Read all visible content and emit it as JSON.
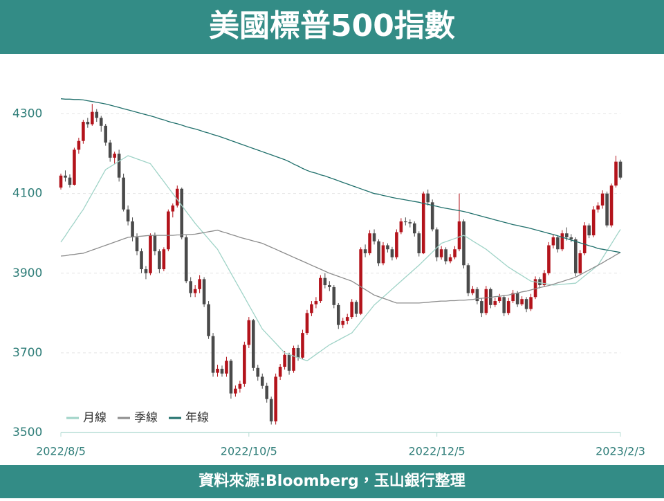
{
  "chart_data": {
    "type": "candlestick",
    "title": "美國標普500指數",
    "source": "資料來源:Bloomberg，玉山銀行整理",
    "categories": [
      "2022/8/5",
      null,
      null,
      null,
      null,
      null,
      null,
      null,
      null,
      null,
      null,
      null,
      null,
      null,
      null,
      null,
      null,
      null,
      null,
      null,
      null,
      null,
      null,
      null,
      null,
      null,
      null,
      null,
      null,
      null,
      null,
      null,
      null,
      null,
      null,
      null,
      null,
      null,
      null,
      null,
      null,
      null,
      "2022/10/5",
      null,
      null,
      null,
      null,
      null,
      null,
      null,
      null,
      null,
      null,
      null,
      null,
      null,
      null,
      null,
      null,
      null,
      null,
      null,
      null,
      null,
      null,
      null,
      null,
      null,
      null,
      null,
      null,
      null,
      null,
      null,
      null,
      null,
      null,
      null,
      null,
      null,
      null,
      null,
      null,
      null,
      "2022/12/5",
      null,
      null,
      null,
      null,
      null,
      null,
      null,
      null,
      null,
      null,
      null,
      null,
      null,
      null,
      null,
      null,
      null,
      null,
      null,
      null,
      null,
      null,
      null,
      null,
      null,
      null,
      null,
      null,
      null,
      null,
      null,
      null,
      null,
      null,
      null,
      null,
      null,
      null,
      null,
      null,
      "2023/2/3"
    ],
    "ohlc": [
      [
        4115,
        4150,
        4110,
        4145
      ],
      [
        4145,
        4158,
        4130,
        4140
      ],
      [
        4140,
        4148,
        4115,
        4122
      ],
      [
        4122,
        4215,
        4120,
        4210
      ],
      [
        4210,
        4240,
        4200,
        4232
      ],
      [
        4232,
        4285,
        4225,
        4280
      ],
      [
        4280,
        4290,
        4265,
        4274
      ],
      [
        4274,
        4325,
        4270,
        4305
      ],
      [
        4305,
        4312,
        4280,
        4290
      ],
      [
        4290,
        4295,
        4255,
        4270
      ],
      [
        4270,
        4275,
        4220,
        4228
      ],
      [
        4228,
        4235,
        4180,
        4190
      ],
      [
        4190,
        4205,
        4175,
        4200
      ],
      [
        4200,
        4210,
        4130,
        4140
      ],
      [
        4140,
        4150,
        4055,
        4060
      ],
      [
        4060,
        4070,
        4020,
        4030
      ],
      [
        4030,
        4040,
        3980,
        3990
      ],
      [
        3990,
        4000,
        3945,
        3955
      ],
      [
        3955,
        3962,
        3900,
        3910
      ],
      [
        3910,
        3918,
        3885,
        3900
      ],
      [
        3900,
        4000,
        3895,
        3995
      ],
      [
        3995,
        4002,
        3945,
        3955
      ],
      [
        3955,
        3960,
        3900,
        3910
      ],
      [
        3910,
        3965,
        3905,
        3960
      ],
      [
        3960,
        4060,
        3955,
        4055
      ],
      [
        4055,
        4075,
        4040,
        4070
      ],
      [
        4070,
        4120,
        4065,
        4112
      ],
      [
        4112,
        4115,
        3985,
        3990
      ],
      [
        3990,
        3995,
        3875,
        3880
      ],
      [
        3880,
        3890,
        3840,
        3850
      ],
      [
        3850,
        3870,
        3840,
        3860
      ],
      [
        3860,
        3895,
        3850,
        3885
      ],
      [
        3885,
        3890,
        3815,
        3822
      ],
      [
        3822,
        3830,
        3735,
        3742
      ],
      [
        3742,
        3750,
        3640,
        3650
      ],
      [
        3650,
        3670,
        3640,
        3660
      ],
      [
        3660,
        3668,
        3640,
        3648
      ],
      [
        3648,
        3690,
        3640,
        3680
      ],
      [
        3680,
        3684,
        3585,
        3598
      ],
      [
        3598,
        3618,
        3590,
        3610
      ],
      [
        3610,
        3630,
        3600,
        3622
      ],
      [
        3622,
        3728,
        3615,
        3720
      ],
      [
        3720,
        3790,
        3712,
        3782
      ],
      [
        3782,
        3785,
        3655,
        3662
      ],
      [
        3662,
        3670,
        3630,
        3640
      ],
      [
        3640,
        3648,
        3610,
        3617
      ],
      [
        3617,
        3625,
        3575,
        3584
      ],
      [
        3584,
        3590,
        3520,
        3528
      ],
      [
        3528,
        3648,
        3520,
        3640
      ],
      [
        3640,
        3672,
        3632,
        3665
      ],
      [
        3665,
        3705,
        3658,
        3695
      ],
      [
        3695,
        3700,
        3645,
        3655
      ],
      [
        3655,
        3718,
        3650,
        3712
      ],
      [
        3712,
        3720,
        3680,
        3688
      ],
      [
        3688,
        3758,
        3684,
        3750
      ],
      [
        3750,
        3808,
        3745,
        3800
      ],
      [
        3800,
        3830,
        3792,
        3822
      ],
      [
        3822,
        3840,
        3812,
        3830
      ],
      [
        3830,
        3895,
        3825,
        3888
      ],
      [
        3888,
        3900,
        3862,
        3870
      ],
      [
        3870,
        3880,
        3855,
        3865
      ],
      [
        3865,
        3870,
        3812,
        3820
      ],
      [
        3820,
        3825,
        3760,
        3770
      ],
      [
        3770,
        3788,
        3762,
        3780
      ],
      [
        3780,
        3798,
        3772,
        3790
      ],
      [
        3790,
        3835,
        3785,
        3828
      ],
      [
        3828,
        3832,
        3790,
        3798
      ],
      [
        3798,
        3965,
        3795,
        3960
      ],
      [
        3960,
        3972,
        3940,
        3950
      ],
      [
        3950,
        4008,
        3945,
        4000
      ],
      [
        4000,
        4010,
        3972,
        3980
      ],
      [
        3980,
        3985,
        3918,
        3925
      ],
      [
        3925,
        3978,
        3920,
        3970
      ],
      [
        3970,
        3975,
        3952,
        3960
      ],
      [
        3960,
        3966,
        3932,
        3940
      ],
      [
        3940,
        4010,
        3935,
        4003
      ],
      [
        4003,
        4038,
        3998,
        4030
      ],
      [
        4030,
        4040,
        4020,
        4028
      ],
      [
        4028,
        4035,
        4015,
        4025
      ],
      [
        4025,
        4030,
        3992,
        4000
      ],
      [
        4000,
        4005,
        3942,
        3950
      ],
      [
        3950,
        4105,
        3948,
        4100
      ],
      [
        4100,
        4110,
        4070,
        4078
      ],
      [
        4078,
        4085,
        4005,
        4010
      ],
      [
        4010,
        4015,
        3930,
        3940
      ],
      [
        3940,
        3968,
        3934,
        3960
      ],
      [
        3960,
        3965,
        3922,
        3930
      ],
      [
        3930,
        3948,
        3925,
        3940
      ],
      [
        3940,
        3968,
        3935,
        3960
      ],
      [
        3960,
        4100,
        3955,
        4030
      ],
      [
        4030,
        4035,
        3912,
        3920
      ],
      [
        3920,
        3925,
        3842,
        3850
      ],
      [
        3850,
        3868,
        3845,
        3860
      ],
      [
        3860,
        3865,
        3822,
        3830
      ],
      [
        3830,
        3838,
        3790,
        3800
      ],
      [
        3800,
        3868,
        3795,
        3860
      ],
      [
        3860,
        3864,
        3812,
        3820
      ],
      [
        3820,
        3838,
        3815,
        3830
      ],
      [
        3830,
        3848,
        3825,
        3840
      ],
      [
        3840,
        3845,
        3792,
        3800
      ],
      [
        3800,
        3838,
        3795,
        3830
      ],
      [
        3830,
        3858,
        3825,
        3850
      ],
      [
        3850,
        3855,
        3815,
        3822
      ],
      [
        3822,
        3842,
        3818,
        3835
      ],
      [
        3835,
        3840,
        3802,
        3810
      ],
      [
        3810,
        3848,
        3805,
        3840
      ],
      [
        3840,
        3892,
        3835,
        3885
      ],
      [
        3885,
        3890,
        3862,
        3870
      ],
      [
        3870,
        3908,
        3865,
        3900
      ],
      [
        3900,
        3978,
        3895,
        3970
      ],
      [
        3970,
        3998,
        3962,
        3990
      ],
      [
        3990,
        3995,
        3952,
        3960
      ],
      [
        3960,
        4008,
        3955,
        4000
      ],
      [
        4000,
        4015,
        3982,
        3990
      ],
      [
        3990,
        3998,
        3978,
        3985
      ],
      [
        3985,
        3990,
        3892,
        3900
      ],
      [
        3900,
        3958,
        3895,
        3950
      ],
      [
        3950,
        4028,
        3945,
        4020
      ],
      [
        4020,
        4025,
        3988,
        3995
      ],
      [
        3995,
        4068,
        3990,
        4060
      ],
      [
        4060,
        4078,
        4052,
        4070
      ],
      [
        4070,
        4108,
        4062,
        4100
      ],
      [
        4100,
        4105,
        4015,
        4020
      ],
      [
        4020,
        4125,
        4015,
        4120
      ],
      [
        4120,
        4195,
        4115,
        4180
      ],
      [
        4180,
        4185,
        4135,
        4140
      ]
    ],
    "up_color": "#b3131b",
    "down_color": "#4a4a4a",
    "series": [
      {
        "name": "月線",
        "color": "#9fd3c7",
        "values": [
          3978,
          3994,
          4011,
          4027,
          4044,
          4060,
          4080,
          4100,
          4120,
          4140,
          4160,
          4167,
          4174,
          4181,
          4188,
          4195,
          4191,
          4187,
          4183,
          4179,
          4175,
          4160,
          4145,
          4130,
          4115,
          4100,
          4085,
          4070,
          4055,
          4040,
          4025,
          4012,
          3999,
          3986,
          3973,
          3960,
          3940,
          3920,
          3900,
          3880,
          3860,
          3840,
          3820,
          3800,
          3780,
          3760,
          3748,
          3736,
          3724,
          3712,
          3700,
          3696,
          3692,
          3688,
          3684,
          3680,
          3688,
          3696,
          3704,
          3712,
          3720,
          3726,
          3732,
          3738,
          3744,
          3750,
          3764,
          3778,
          3792,
          3806,
          3820,
          3830,
          3840,
          3850,
          3860,
          3870,
          3880,
          3890,
          3900,
          3910,
          3920,
          3931,
          3942,
          3953,
          3964,
          3975,
          3979,
          3983,
          3987,
          3991,
          3995,
          3988,
          3981,
          3974,
          3967,
          3960,
          3951,
          3942,
          3933,
          3924,
          3915,
          3908,
          3901,
          3894,
          3887,
          3880,
          3878,
          3876,
          3874,
          3872,
          3870,
          3871,
          3872,
          3873,
          3874,
          3875,
          3884,
          3893,
          3902,
          3911,
          3920,
          3938,
          3956,
          3974,
          3992,
          4010
        ]
      },
      {
        "name": "季線",
        "color": "#8c8c8c",
        "values": [
          3943,
          3944,
          3946,
          3947,
          3949,
          3950,
          3954,
          3958,
          3962,
          3966,
          3970,
          3974,
          3978,
          3982,
          3986,
          3990,
          3991,
          3992,
          3993,
          3994,
          3995,
          3995,
          3995,
          3995,
          3995,
          3995,
          3996,
          3996,
          3997,
          3997,
          3998,
          4000,
          4002,
          4004,
          4006,
          4008,
          4004,
          4001,
          3997,
          3994,
          3990,
          3987,
          3984,
          3981,
          3978,
          3975,
          3970,
          3965,
          3960,
          3955,
          3950,
          3945,
          3940,
          3935,
          3930,
          3925,
          3920,
          3915,
          3910,
          3905,
          3900,
          3896,
          3892,
          3888,
          3884,
          3880,
          3873,
          3866,
          3859,
          3852,
          3845,
          3841,
          3837,
          3833,
          3829,
          3825,
          3825,
          3825,
          3825,
          3825,
          3825,
          3826,
          3827,
          3828,
          3829,
          3830,
          3830,
          3831,
          3831,
          3832,
          3832,
          3833,
          3834,
          3836,
          3837,
          3838,
          3839,
          3841,
          3842,
          3844,
          3845,
          3848,
          3850,
          3853,
          3855,
          3858,
          3861,
          3864,
          3866,
          3869,
          3872,
          3876,
          3879,
          3883,
          3886,
          3890,
          3896,
          3902,
          3908,
          3914,
          3920,
          3926,
          3933,
          3939,
          3946,
          3952
        ]
      },
      {
        "name": "年線",
        "color": "#1f6f6b",
        "values": [
          4338,
          4337,
          4337,
          4336,
          4336,
          4335,
          4333,
          4331,
          4329,
          4327,
          4325,
          4322,
          4319,
          4316,
          4313,
          4310,
          4307,
          4304,
          4301,
          4298,
          4295,
          4292,
          4288,
          4285,
          4281,
          4278,
          4275,
          4272,
          4268,
          4265,
          4262,
          4259,
          4255,
          4252,
          4248,
          4245,
          4241,
          4237,
          4233,
          4229,
          4225,
          4221,
          4217,
          4213,
          4209,
          4205,
          4201,
          4197,
          4193,
          4189,
          4185,
          4180,
          4174,
          4169,
          4163,
          4158,
          4154,
          4151,
          4147,
          4144,
          4140,
          4136,
          4132,
          4128,
          4124,
          4120,
          4116,
          4112,
          4108,
          4104,
          4100,
          4098,
          4095,
          4093,
          4090,
          4088,
          4086,
          4084,
          4082,
          4080,
          4078,
          4075,
          4073,
          4070,
          4068,
          4065,
          4063,
          4061,
          4059,
          4057,
          4055,
          4052,
          4049,
          4046,
          4043,
          4040,
          4037,
          4034,
          4031,
          4028,
          4025,
          4022,
          4020,
          4017,
          4015,
          4012,
          4009,
          4006,
          4003,
          4000,
          3997,
          3994,
          3990,
          3987,
          3983,
          3980,
          3976,
          3973,
          3969,
          3966,
          3962,
          3960,
          3958,
          3956,
          3954,
          3952
        ]
      }
    ],
    "ylim": [
      3500,
      4400
    ],
    "yticks": [
      3500,
      3700,
      3900,
      4100,
      4300
    ],
    "grid": true,
    "legend": "bottom-left"
  }
}
